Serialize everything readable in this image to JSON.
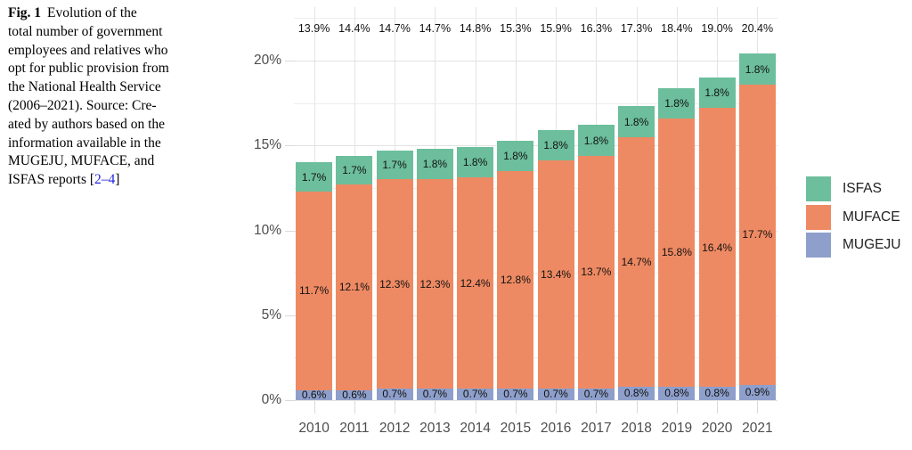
{
  "caption": {
    "fig_label": "Fig. 1",
    "text": "Evolution of the\ntotal number of government\nemployees and relatives who\nopt for public provision from\nthe National Health Service\n(2006–2021). Source: Cre-\nated by authors based on the\ninformation available in the\nMUGEJU, MUFACE, and\nISFAS reports ",
    "bracket_open": "[",
    "link_text": "2–4",
    "bracket_close": "]",
    "link_color": "#2222DD"
  },
  "chart_data": {
    "type": "bar",
    "stacked": true,
    "title": "",
    "xlabel": "",
    "ylabel": "",
    "ylim": [
      0,
      23
    ],
    "grid": true,
    "legend_position": "right",
    "categories": [
      "2010",
      "2011",
      "2012",
      "2013",
      "2014",
      "2015",
      "2016",
      "2017",
      "2018",
      "2019",
      "2020",
      "2021"
    ],
    "series": [
      {
        "name": "MUGEJU",
        "color": "#8E9FCB",
        "values": [
          0.6,
          0.6,
          0.7,
          0.7,
          0.7,
          0.7,
          0.7,
          0.7,
          0.8,
          0.8,
          0.8,
          0.9
        ]
      },
      {
        "name": "MUFACE",
        "color": "#EE8A63",
        "values": [
          11.7,
          12.1,
          12.3,
          12.3,
          12.4,
          12.8,
          13.4,
          13.7,
          14.7,
          15.8,
          16.4,
          17.7
        ]
      },
      {
        "name": "ISFAS",
        "color": "#6CBE9C",
        "values": [
          1.7,
          1.7,
          1.7,
          1.8,
          1.8,
          1.8,
          1.8,
          1.8,
          1.8,
          1.8,
          1.8,
          1.8
        ]
      }
    ],
    "totals": [
      13.9,
      14.4,
      14.7,
      14.7,
      14.8,
      15.3,
      15.9,
      16.3,
      17.3,
      18.4,
      19.0,
      20.4
    ],
    "y_ticks": [
      {
        "label": "0%",
        "value": 0
      },
      {
        "label": "5%",
        "value": 5
      },
      {
        "label": "10%",
        "value": 10
      },
      {
        "label": "15%",
        "value": 15
      },
      {
        "label": "20%",
        "value": 20
      }
    ],
    "legend": [
      "ISFAS",
      "MUFACE",
      "MUGEJU"
    ]
  }
}
